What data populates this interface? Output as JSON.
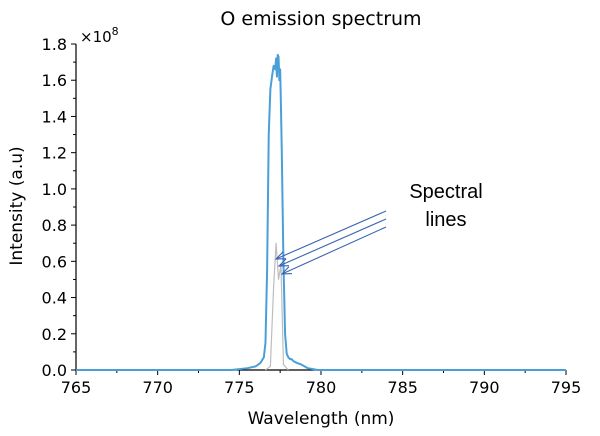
{
  "chart_data": {
    "type": "line",
    "title": "O emission spectrum",
    "xlabel": "Wavelength (nm)",
    "ylabel": "Intensity (a.u)",
    "y_multiplier_label": "×10",
    "y_multiplier_exponent": "8",
    "xlim": [
      765,
      795
    ],
    "ylim": [
      0.0,
      1.8
    ],
    "x_ticks": [
      "765",
      "770",
      "775",
      "780",
      "785",
      "790",
      "795"
    ],
    "y_ticks": [
      "0.0",
      "0.2",
      "0.4",
      "0.6",
      "0.8",
      "1.0",
      "1.2",
      "1.4",
      "1.6",
      "1.8"
    ],
    "grid": false,
    "series": [
      {
        "color": "#4a9fd8",
        "x": [
          765,
          774.5,
          775.5,
          776.0,
          776.3,
          776.5,
          776.6,
          776.7,
          776.8,
          776.9,
          777.0,
          777.1,
          777.2,
          777.25,
          777.3,
          777.35,
          777.4,
          777.45,
          777.5,
          777.55,
          777.6,
          777.7,
          777.8,
          777.9,
          778.0,
          778.1,
          778.2,
          778.3,
          778.5,
          778.8,
          779.2,
          779.8,
          781,
          795
        ],
        "y": [
          0.0,
          0.0,
          0.01,
          0.02,
          0.04,
          0.07,
          0.15,
          0.55,
          1.3,
          1.55,
          1.62,
          1.68,
          1.66,
          1.72,
          1.62,
          1.74,
          1.73,
          1.6,
          1.66,
          1.45,
          1.2,
          0.6,
          0.2,
          0.09,
          0.07,
          0.06,
          0.06,
          0.05,
          0.04,
          0.03,
          0.01,
          0.0,
          0.0,
          0.0
        ]
      },
      {
        "color": "#bdbdbd",
        "x": [
          776.6,
          776.9,
          777.1,
          777.25,
          777.4,
          777.55,
          777.7,
          778.0
        ],
        "y": [
          0.0,
          0.02,
          0.46,
          0.7,
          0.5,
          0.58,
          0.03,
          0.0
        ]
      }
    ],
    "annotations": [
      {
        "text_line1": "Spectral",
        "text_line2": "lines"
      }
    ]
  },
  "arrow_color": "#3a64b0"
}
